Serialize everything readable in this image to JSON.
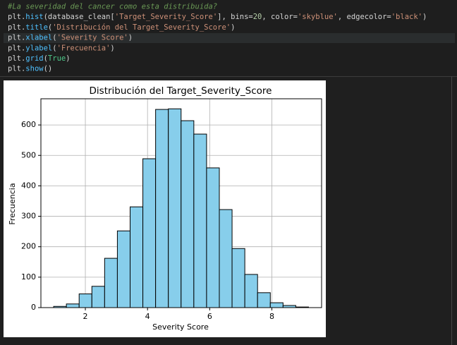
{
  "code": {
    "lines": [
      [
        {
          "text": "#La severidad del cancer como esta distribuida?",
          "color": "#6a9955",
          "italic": true
        }
      ],
      [
        {
          "text": "plt.",
          "color": "#d4d4d4"
        },
        {
          "text": "hist",
          "color": "#4fc1ff"
        },
        {
          "text": "(database_clean[",
          "color": "#d4d4d4"
        },
        {
          "text": "'Target_Severity_Score'",
          "color": "#ce9178"
        },
        {
          "text": "], bins=",
          "color": "#d4d4d4"
        },
        {
          "text": "20",
          "color": "#b5cea8"
        },
        {
          "text": ", color=",
          "color": "#d4d4d4"
        },
        {
          "text": "'skyblue'",
          "color": "#ce9178"
        },
        {
          "text": ", edgecolor=",
          "color": "#d4d4d4"
        },
        {
          "text": "'black'",
          "color": "#ce9178"
        },
        {
          "text": ")",
          "color": "#d4d4d4"
        }
      ],
      [
        {
          "text": "plt.",
          "color": "#d4d4d4"
        },
        {
          "text": "title",
          "color": "#4fc1ff"
        },
        {
          "text": "(",
          "color": "#d4d4d4"
        },
        {
          "text": "'Distribución del Target_Severity_Score'",
          "color": "#ce9178"
        },
        {
          "text": ")",
          "color": "#d4d4d4"
        }
      ],
      [
        {
          "text": "plt.",
          "color": "#d4d4d4"
        },
        {
          "text": "xlabel",
          "color": "#4fc1ff"
        },
        {
          "text": "(",
          "color": "#d4d4d4"
        },
        {
          "text": "'Severity Score'",
          "color": "#ce9178"
        },
        {
          "text": ")",
          "color": "#d4d4d4"
        }
      ],
      [
        {
          "text": "plt.",
          "color": "#d4d4d4"
        },
        {
          "text": "ylabel",
          "color": "#4fc1ff"
        },
        {
          "text": "(",
          "color": "#d4d4d4"
        },
        {
          "text": "'Frecuencia'",
          "color": "#ce9178"
        },
        {
          "text": ")",
          "color": "#d4d4d4"
        }
      ],
      [
        {
          "text": "plt.",
          "color": "#d4d4d4"
        },
        {
          "text": "grid",
          "color": "#4fc1ff"
        },
        {
          "text": "(",
          "color": "#d4d4d4"
        },
        {
          "text": "True",
          "color": "#4ec98a"
        },
        {
          "text": ")",
          "color": "#d4d4d4"
        }
      ],
      [
        {
          "text": "plt.",
          "color": "#d4d4d4"
        },
        {
          "text": "show",
          "color": "#4fc1ff"
        },
        {
          "text": "()",
          "color": "#d4d4d4"
        }
      ]
    ]
  },
  "chart_data": {
    "type": "histogram",
    "title": "Distribución del Target_Severity_Score",
    "x_label": "Severity Score",
    "y_label": "Frecuencia",
    "bins": [
      0.98,
      1.39,
      1.8,
      2.21,
      2.62,
      3.03,
      3.44,
      3.85,
      4.26,
      4.67,
      5.08,
      5.49,
      5.9,
      6.31,
      6.72,
      7.13,
      7.54,
      7.95,
      8.36,
      8.77,
      9.18
    ],
    "counts": [
      4,
      12,
      45,
      70,
      162,
      252,
      331,
      489,
      651,
      653,
      614,
      570,
      459,
      322,
      194,
      109,
      49,
      16,
      7,
      2
    ],
    "color": "#87ceeb",
    "edgecolor": "#000000",
    "xlim": [
      0.57,
      9.6
    ],
    "ylim": [
      0,
      686
    ],
    "xticks": [
      2,
      4,
      6,
      8
    ],
    "yticks": [
      0,
      100,
      200,
      300,
      400,
      500,
      600
    ],
    "grid": true
  }
}
